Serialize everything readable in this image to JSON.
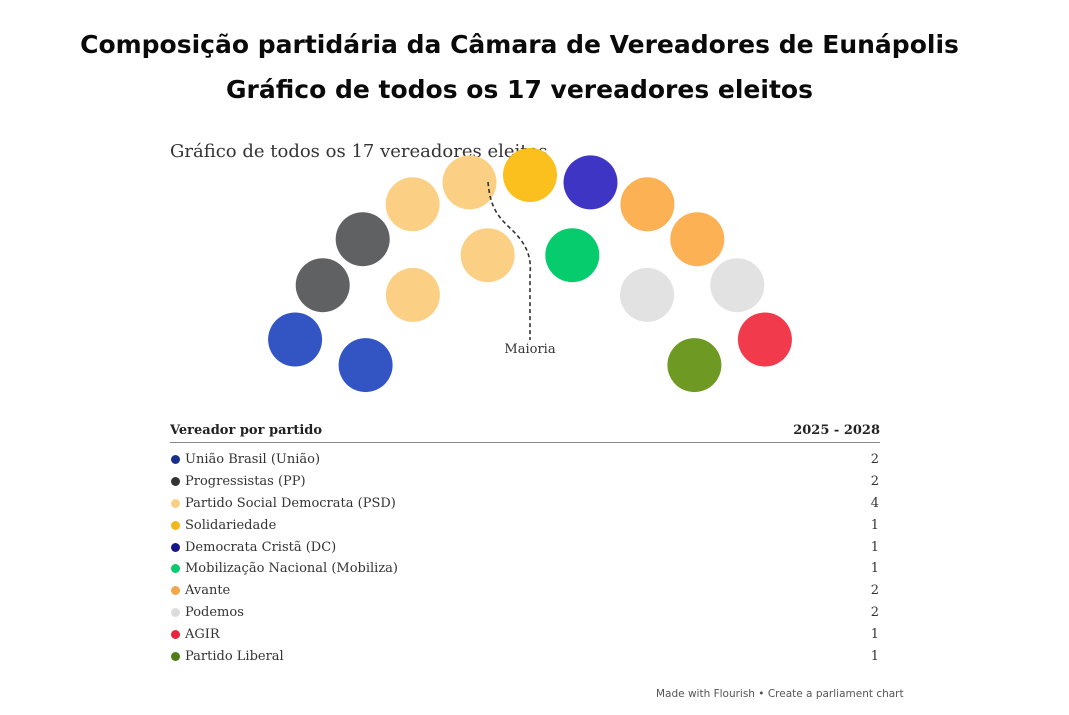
{
  "headline": {
    "line1": "Composição partidária da Câmara de Vereadores de Eunápolis",
    "line2": "Gráfico de todos os 17 vereadores eleitos"
  },
  "chart_data": {
    "type": "parliament",
    "title": "Gráfico de todos os 17 vereadores eleitos",
    "majority_label": "Maioria",
    "table_header": {
      "party": "Vereador por partido",
      "period": "2025 - 2028"
    },
    "parties": [
      {
        "name": "União Brasil (União)",
        "seats": 2,
        "color": "#3355c4",
        "legend_color": "#1a2e8c"
      },
      {
        "name": "Progressistas (PP)",
        "seats": 2,
        "color": "#5f6163",
        "legend_color": "#333333"
      },
      {
        "name": "Partido Social Democrata (PSD)",
        "seats": 4,
        "color": "#fbd085",
        "legend_color": "#fbd085"
      },
      {
        "name": "Solidariedade",
        "seats": 1,
        "color": "#fbbf1e",
        "legend_color": "#f2b81a"
      },
      {
        "name": "Democrata Cristã (DC)",
        "seats": 1,
        "color": "#3f35c4",
        "legend_color": "#16168a"
      },
      {
        "name": "Mobilização Nacional (Mobiliza)",
        "seats": 1,
        "color": "#07cc6e",
        "legend_color": "#07cc6e"
      },
      {
        "name": "Avante",
        "seats": 2,
        "color": "#fbb154",
        "legend_color": "#f4a64a"
      },
      {
        "name": "Podemos",
        "seats": 2,
        "color": "#e2e2e2",
        "legend_color": "#dcdcdc"
      },
      {
        "name": "AGIR",
        "seats": 1,
        "color": "#f13a4c",
        "legend_color": "#e8253c"
      },
      {
        "name": "Partido Liberal",
        "seats": 1,
        "color": "#6e9a23",
        "legend_color": "#4f7f14"
      }
    ],
    "total_seats": 17
  },
  "footer": "Made with Flourish • Create a parliament chart"
}
